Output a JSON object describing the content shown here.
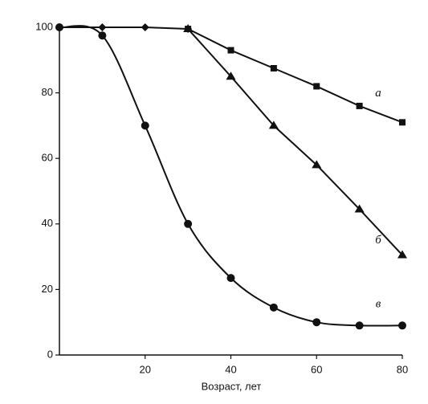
{
  "chart_data": {
    "type": "line",
    "x_label": "Возраст, лет",
    "xlim": [
      0,
      80
    ],
    "xticks": [
      20,
      40,
      60,
      80
    ],
    "ylim": [
      0,
      100
    ],
    "yticks": [
      0,
      20,
      40,
      60,
      80,
      100
    ],
    "grid": false,
    "color": "#111111",
    "series": [
      {
        "marker": "diamond",
        "smooth": false,
        "x": [
          0,
          10,
          20,
          30
        ],
        "values": [
          100,
          100,
          100,
          99.5
        ]
      },
      {
        "name": "а",
        "marker": "square",
        "smooth": false,
        "x": [
          30,
          40,
          50,
          60,
          70,
          80
        ],
        "values": [
          99.5,
          93,
          87.5,
          82,
          76,
          71
        ]
      },
      {
        "name": "б",
        "marker": "triangle",
        "smooth": false,
        "x": [
          30,
          40,
          50,
          60,
          70,
          80
        ],
        "values": [
          99.5,
          85,
          70,
          58,
          44.5,
          30.5
        ]
      },
      {
        "name": "в",
        "marker": "circle",
        "smooth": true,
        "x": [
          0,
          10,
          20,
          30,
          40,
          50,
          60,
          70,
          80
        ],
        "values": [
          100,
          97.5,
          70,
          40,
          23.5,
          14.5,
          10,
          9,
          9
        ]
      }
    ]
  }
}
